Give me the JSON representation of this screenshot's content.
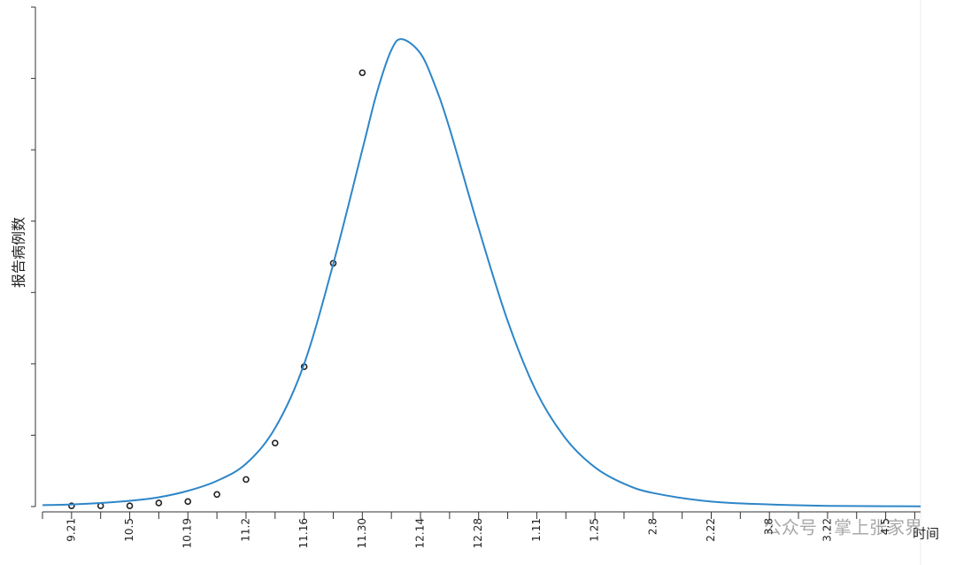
{
  "chart_data": {
    "type": "scatter",
    "x_label": "时间",
    "y_label": "报告病例数",
    "watermark": "公众号 · 掌上张家界",
    "xlim": [
      -1,
      29.2
    ],
    "xticks": [
      {
        "value": 0,
        "label": "9.21"
      },
      {
        "value": 2,
        "label": "10.5"
      },
      {
        "value": 4,
        "label": "10.19"
      },
      {
        "value": 6,
        "label": "11.2"
      },
      {
        "value": 8,
        "label": "11.16"
      },
      {
        "value": 10,
        "label": "11.30"
      },
      {
        "value": 12,
        "label": "12.14"
      },
      {
        "value": 14,
        "label": "12.28"
      },
      {
        "value": 16,
        "label": "1.11"
      },
      {
        "value": 18,
        "label": "1.25"
      },
      {
        "value": 20,
        "label": "2.8"
      },
      {
        "value": 22,
        "label": "2.22"
      },
      {
        "value": 24,
        "label": "3.8"
      },
      {
        "value": 26,
        "label": "3.22"
      },
      {
        "value": 28,
        "label": "4.5"
      }
    ],
    "minor_xticks": [
      -1,
      1,
      3,
      5,
      7,
      9,
      11,
      13,
      15,
      17,
      19,
      21,
      23,
      25,
      27,
      29
    ],
    "ylim": [
      0,
      7
    ],
    "yticks": [
      0,
      1,
      2,
      3,
      4,
      5,
      6,
      7
    ],
    "series": [
      {
        "type": "scatter",
        "color": "#222222",
        "x": [
          0,
          1,
          2,
          3,
          4,
          5,
          6,
          7,
          8,
          9,
          10
        ],
        "values": [
          0.01,
          0.01,
          0.01,
          0.05,
          0.07,
          0.17,
          0.38,
          0.89,
          1.96,
          3.41,
          6.08
        ]
      },
      {
        "type": "line",
        "color": "#2e86c8",
        "x": [
          -1,
          0,
          1,
          2,
          3,
          4,
          5,
          6,
          7,
          8,
          9,
          10,
          10.5,
          11,
          11.37,
          12,
          12.5,
          13,
          14,
          15,
          16,
          17,
          18,
          19,
          20,
          22,
          24,
          26,
          28,
          29.2
        ],
        "values": [
          0.02,
          0.03,
          0.05,
          0.08,
          0.13,
          0.22,
          0.36,
          0.6,
          1.1,
          2.0,
          3.4,
          5.0,
          5.8,
          6.4,
          6.55,
          6.35,
          5.9,
          5.3,
          3.9,
          2.6,
          1.6,
          0.95,
          0.55,
          0.32,
          0.19,
          0.07,
          0.03,
          0.01,
          0.005,
          0.003
        ]
      }
    ]
  }
}
